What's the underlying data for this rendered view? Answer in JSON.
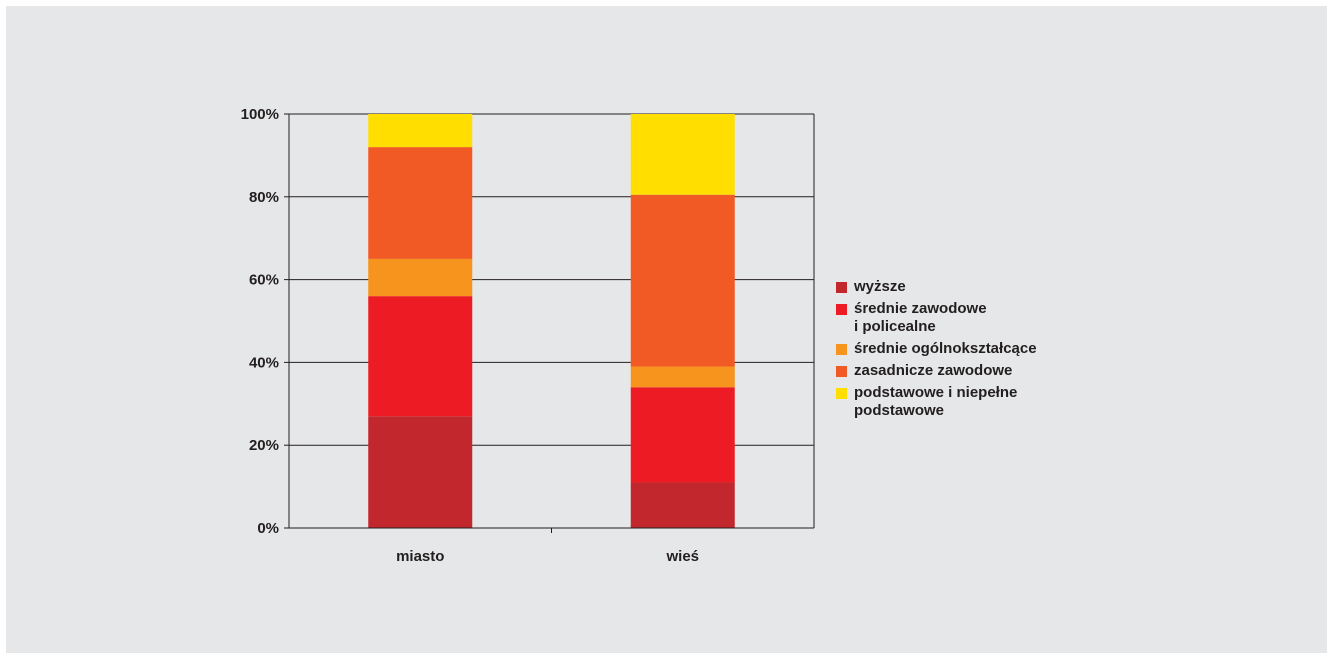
{
  "chart_data": {
    "type": "bar",
    "stacked": true,
    "categories": [
      "miasto",
      "wieś"
    ],
    "series": [
      {
        "name": "wyższe",
        "color": "#c1272d",
        "values": [
          27,
          11
        ]
      },
      {
        "name": "średnie zawodowe\ni policealne",
        "color": "#ed1c24",
        "values": [
          29,
          23
        ]
      },
      {
        "name": "średnie ogólnokształcące",
        "color": "#f7941d",
        "values": [
          9,
          5
        ]
      },
      {
        "name": "zasadnicze zawodowe",
        "color": "#f15a24",
        "values": [
          27,
          41.5
        ]
      },
      {
        "name": "podstawowe i niepełne\npodstawowe",
        "color": "#ffde00",
        "values": [
          8,
          19.5
        ]
      }
    ],
    "yticks": [
      "0%",
      "20%",
      "40%",
      "60%",
      "80%",
      "100%"
    ],
    "ylim": [
      0,
      100
    ],
    "grid": true,
    "legend": "right"
  }
}
